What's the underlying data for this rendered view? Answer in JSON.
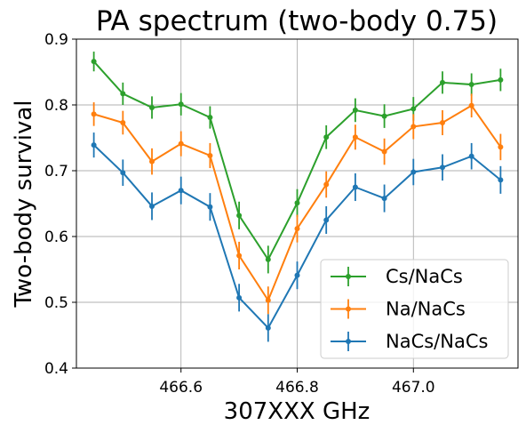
{
  "chart_data": {
    "type": "line",
    "title": "PA spectrum (two-body 0.75)",
    "xlabel": "307XXX GHz",
    "ylabel": "Two-body survival",
    "xlim": [
      466.42,
      467.18
    ],
    "ylim": [
      0.4,
      0.9
    ],
    "xticks": [
      466.6,
      466.8,
      467.0
    ],
    "xtick_labels": [
      "466.6",
      "466.8",
      "467.0"
    ],
    "yticks": [
      0.4,
      0.5,
      0.6,
      0.7,
      0.8,
      0.9
    ],
    "ytick_labels": [
      "0.4",
      "0.5",
      "0.6",
      "0.7",
      "0.8",
      "0.9"
    ],
    "grid": true,
    "legend_position": "lower-right",
    "x": [
      466.45,
      466.5,
      466.55,
      466.6,
      466.65,
      466.7,
      466.75,
      466.8,
      466.85,
      466.9,
      466.95,
      467.0,
      467.05,
      467.1,
      467.15
    ],
    "series": [
      {
        "name": "Cs/NaCs",
        "color": "#2ca02c",
        "values": [
          0.866,
          0.817,
          0.796,
          0.801,
          0.781,
          0.632,
          0.565,
          0.651,
          0.751,
          0.792,
          0.783,
          0.794,
          0.834,
          0.831,
          0.838
        ],
        "errors": [
          0.015,
          0.017,
          0.017,
          0.017,
          0.017,
          0.021,
          0.021,
          0.021,
          0.018,
          0.018,
          0.018,
          0.018,
          0.017,
          0.017,
          0.017
        ]
      },
      {
        "name": "Na/NaCs",
        "color": "#ff7f0e",
        "values": [
          0.786,
          0.773,
          0.714,
          0.741,
          0.723,
          0.571,
          0.503,
          0.612,
          0.679,
          0.751,
          0.729,
          0.767,
          0.773,
          0.799,
          0.736
        ],
        "errors": [
          0.018,
          0.018,
          0.02,
          0.019,
          0.019,
          0.021,
          0.021,
          0.021,
          0.02,
          0.019,
          0.02,
          0.019,
          0.019,
          0.018,
          0.02
        ]
      },
      {
        "name": "NaCs/NaCs",
        "color": "#1f77b4",
        "values": [
          0.739,
          0.697,
          0.646,
          0.67,
          0.645,
          0.507,
          0.461,
          0.541,
          0.625,
          0.675,
          0.658,
          0.698,
          0.705,
          0.722,
          0.686
        ],
        "errors": [
          0.019,
          0.02,
          0.021,
          0.021,
          0.021,
          0.021,
          0.021,
          0.021,
          0.021,
          0.021,
          0.021,
          0.02,
          0.02,
          0.02,
          0.021
        ]
      }
    ]
  }
}
